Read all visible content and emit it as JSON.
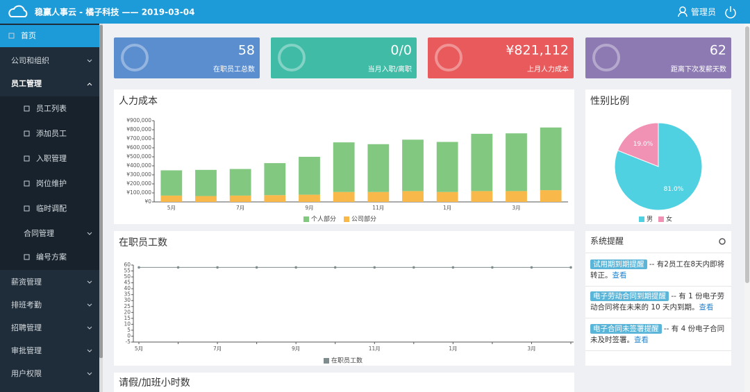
{
  "header": {
    "title": "稳赢人事云 - 橘子科技 —— 2019-03-04",
    "user": "管理员"
  },
  "sidebar": {
    "items": [
      "首页",
      "公司和组织",
      "员工管理",
      "员工列表",
      "添加员工",
      "入职管理",
      "岗位维护",
      "临时调配",
      "合同管理",
      "编号方案",
      "薪资管理",
      "排班考勤",
      "招聘管理",
      "审批管理",
      "用户权限"
    ]
  },
  "stats": [
    {
      "value": 58,
      "label": "在职员工总数",
      "color": "#5b8ecf"
    },
    {
      "value": "0/0",
      "label": "当月入职/离职",
      "color": "#3fbba6"
    },
    {
      "value": "¥821,112",
      "label": "上月人力成本",
      "color": "#e85a5b"
    },
    {
      "value": 62,
      "label": "距离下次发薪天数",
      "color": "#8d7ab3"
    }
  ],
  "chart_data": [
    {
      "type": "bar",
      "stacked": true,
      "title": "人力成本",
      "categories": [
        "5月",
        null,
        "7月",
        null,
        "9月",
        null,
        "11月",
        null,
        "1月",
        null,
        "3月",
        null
      ],
      "series": [
        {
          "name": "个人部分",
          "color": "#82c881",
          "values": [
            280000,
            290000,
            295000,
            355000,
            420000,
            550000,
            530000,
            570000,
            555000,
            635000,
            640000,
            695000
          ]
        },
        {
          "name": "公司部分",
          "color": "#f8b84a",
          "values": [
            70000,
            65000,
            70000,
            75000,
            80000,
            110000,
            110000,
            120000,
            110000,
            120000,
            120000,
            130000
          ]
        }
      ],
      "ylim": [
        0,
        900000
      ],
      "yticks": [
        {
          "value": 0,
          "label": "¥0"
        },
        {
          "value": 100000,
          "label": "¥100,000"
        },
        {
          "value": 200000,
          "label": "¥200,000"
        },
        {
          "value": 300000,
          "label": "¥300,000"
        },
        {
          "value": 400000,
          "label": "¥400,000"
        },
        {
          "value": 500000,
          "label": "¥500,000"
        },
        {
          "value": 600000,
          "label": "¥600,000"
        },
        {
          "value": 700000,
          "label": "¥700,000"
        },
        {
          "value": 800000,
          "label": "¥800,000"
        },
        {
          "value": 900000,
          "label": "¥900,000"
        }
      ]
    },
    {
      "type": "line",
      "title": "在职员工数",
      "categories": [
        "5月",
        null,
        "7月",
        null,
        "9月",
        null,
        "11月",
        null,
        "1月",
        null,
        "3月",
        null
      ],
      "series": [
        {
          "name": "在职员工数",
          "color": "#7f8c8d",
          "values": [
            58,
            58,
            58,
            58,
            58,
            58,
            58,
            58,
            58,
            58,
            58,
            58
          ]
        }
      ],
      "ylim": [
        -5,
        60
      ],
      "yticks": [
        -5,
        0,
        5,
        10,
        15,
        20,
        25,
        30,
        35,
        40,
        45,
        50,
        55,
        60
      ]
    },
    {
      "type": "pie",
      "title": "性别比例",
      "categories": [
        "男",
        "女"
      ],
      "values": [
        81.0,
        19.0
      ],
      "value_labels": [
        "81.0%",
        "19.0%"
      ],
      "colors": [
        "#4fd1e1",
        "#f191b4"
      ]
    }
  ],
  "reminders": {
    "title": "系统提醒",
    "items": [
      {
        "tag": "试用期到期提醒",
        "text": "-- 有2员工在8天内即将转正。",
        "link": "查看"
      },
      {
        "tag": "电子劳动合同到期提醒",
        "text": "-- 有 1 份电子劳动合同将在未来的 10 天内到期。",
        "link": "查看"
      },
      {
        "tag": "电子合同未签署提醒",
        "text": "-- 有 4 份电子合同未及时签署。",
        "link": "查看"
      }
    ]
  },
  "bottom_panel": {
    "title": "请假/加班小时数"
  }
}
